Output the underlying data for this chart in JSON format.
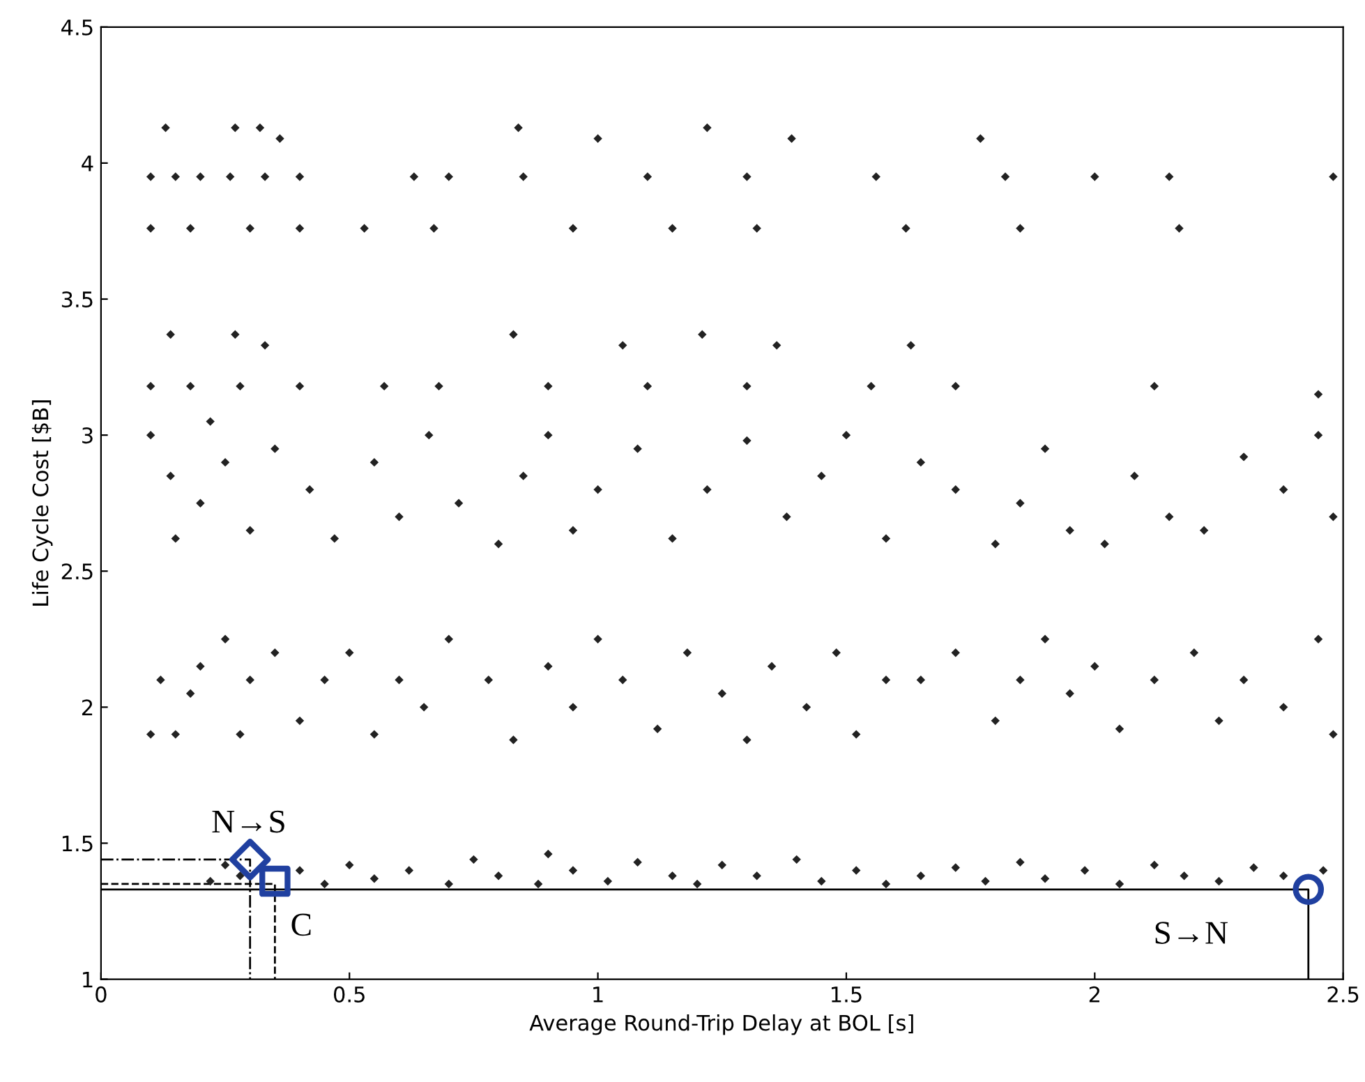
{
  "chart_data": {
    "type": "scatter",
    "xlabel": "Average Round-Trip Delay at BOL [s]",
    "ylabel": "Life Cycle Cost [$B]",
    "xlim": [
      0,
      2.5
    ],
    "ylim": [
      1,
      4.5
    ],
    "xticks": [
      0,
      0.5,
      1,
      1.5,
      2,
      2.5
    ],
    "yticks": [
      1,
      1.5,
      2,
      2.5,
      3,
      3.5,
      4,
      4.5
    ],
    "grid": false,
    "legend": false,
    "series": [
      {
        "marker": "diamond",
        "color": "#222222",
        "x": [
          0.13,
          0.27,
          0.32,
          0.36,
          0.84,
          1.0,
          1.22,
          1.39,
          1.77,
          0.1,
          0.15,
          0.2,
          0.26,
          0.33,
          0.4,
          0.63,
          0.7,
          0.85,
          1.1,
          1.3,
          1.56,
          1.82,
          2.0,
          2.15,
          2.48,
          0.1,
          0.18,
          0.3,
          0.4,
          0.53,
          0.67,
          0.95,
          1.15,
          1.32,
          1.62,
          1.85,
          2.17,
          0.14,
          0.27,
          0.33,
          0.83,
          1.05,
          1.21,
          1.36,
          1.63,
          0.1,
          0.18,
          0.28,
          0.4,
          0.57,
          0.68,
          0.9,
          1.1,
          1.3,
          1.55,
          1.72,
          2.12,
          2.45,
          0.1,
          0.14,
          0.15,
          0.2,
          0.22,
          0.25,
          0.3,
          0.35,
          0.42,
          0.47,
          0.55,
          0.6,
          0.66,
          0.72,
          0.8,
          0.85,
          0.9,
          0.95,
          1.0,
          1.08,
          1.15,
          1.22,
          1.3,
          1.38,
          1.45,
          1.5,
          1.58,
          1.65,
          1.72,
          1.8,
          1.85,
          1.9,
          1.95,
          2.02,
          2.08,
          2.15,
          2.22,
          2.3,
          2.38,
          2.45,
          2.48,
          0.1,
          0.12,
          0.15,
          0.18,
          0.2,
          0.25,
          0.28,
          0.3,
          0.35,
          0.4,
          0.45,
          0.5,
          0.55,
          0.6,
          0.65,
          0.7,
          0.78,
          0.83,
          0.9,
          0.95,
          1.0,
          1.05,
          1.12,
          1.18,
          1.25,
          1.3,
          1.35,
          1.42,
          1.48,
          1.52,
          1.58,
          1.65,
          1.72,
          1.8,
          1.85,
          1.9,
          1.95,
          2.0,
          2.05,
          2.12,
          2.2,
          2.25,
          2.3,
          2.38,
          2.45,
          2.48,
          0.22,
          0.25,
          0.28,
          0.4,
          0.45,
          0.5,
          0.55,
          0.62,
          0.7,
          0.75,
          0.8,
          0.88,
          0.9,
          0.95,
          1.02,
          1.08,
          1.15,
          1.2,
          1.25,
          1.32,
          1.4,
          1.45,
          1.52,
          1.58,
          1.65,
          1.72,
          1.78,
          1.85,
          1.9,
          1.98,
          2.05,
          2.12,
          2.18,
          2.25,
          2.32,
          2.38,
          2.46
        ],
        "values": [
          4.13,
          4.13,
          4.13,
          4.09,
          4.13,
          4.09,
          4.13,
          4.09,
          4.09,
          3.95,
          3.95,
          3.95,
          3.95,
          3.95,
          3.95,
          3.95,
          3.95,
          3.95,
          3.95,
          3.95,
          3.95,
          3.95,
          3.95,
          3.95,
          3.95,
          3.76,
          3.76,
          3.76,
          3.76,
          3.76,
          3.76,
          3.76,
          3.76,
          3.76,
          3.76,
          3.76,
          3.76,
          3.37,
          3.37,
          3.33,
          3.37,
          3.33,
          3.37,
          3.33,
          3.33,
          3.18,
          3.18,
          3.18,
          3.18,
          3.18,
          3.18,
          3.18,
          3.18,
          3.18,
          3.18,
          3.18,
          3.18,
          3.15,
          3.0,
          2.85,
          2.62,
          2.75,
          3.05,
          2.9,
          2.65,
          2.95,
          2.8,
          2.62,
          2.9,
          2.7,
          3.0,
          2.75,
          2.6,
          2.85,
          3.0,
          2.65,
          2.8,
          2.95,
          2.62,
          2.8,
          2.98,
          2.7,
          2.85,
          3.0,
          2.62,
          2.9,
          2.8,
          2.6,
          2.75,
          2.95,
          2.65,
          2.6,
          2.85,
          2.7,
          2.65,
          2.92,
          2.8,
          3.0,
          2.7,
          1.9,
          2.1,
          1.9,
          2.05,
          2.15,
          2.25,
          1.9,
          2.1,
          2.2,
          1.95,
          2.1,
          2.2,
          1.9,
          2.1,
          2.0,
          2.25,
          2.1,
          1.88,
          2.15,
          2.0,
          2.25,
          2.1,
          1.92,
          2.2,
          2.05,
          1.88,
          2.15,
          2.0,
          2.2,
          1.9,
          2.1,
          2.1,
          2.2,
          1.95,
          2.1,
          2.25,
          2.05,
          2.15,
          1.92,
          2.1,
          2.2,
          1.95,
          2.1,
          2.0,
          2.25,
          1.9,
          1.36,
          1.42,
          1.38,
          1.4,
          1.35,
          1.42,
          1.37,
          1.4,
          1.35,
          1.44,
          1.38,
          1.35,
          1.46,
          1.4,
          1.36,
          1.43,
          1.38,
          1.35,
          1.42,
          1.38,
          1.44,
          1.36,
          1.4,
          1.35,
          1.38,
          1.41,
          1.36,
          1.43,
          1.37,
          1.4,
          1.35,
          1.42,
          1.38,
          1.36,
          1.41,
          1.38,
          1.4
        ]
      },
      {
        "type": "line",
        "line_style": "dashdot",
        "color": "#000000",
        "x": [
          0,
          0.3,
          0.3
        ],
        "values": [
          1.44,
          1.44,
          1
        ]
      },
      {
        "type": "line",
        "line_style": "dashed",
        "color": "#000000",
        "x": [
          0,
          0.35,
          0.35
        ],
        "values": [
          1.35,
          1.35,
          1
        ]
      },
      {
        "type": "line",
        "line_style": "solid",
        "color": "#000000",
        "x": [
          0,
          2.43,
          2.43
        ],
        "values": [
          1.33,
          1.33,
          1
        ]
      },
      {
        "type": "scatter",
        "marker": "diamond",
        "color": "#2040a0",
        "x": [
          0.3
        ],
        "values": [
          1.44
        ]
      },
      {
        "type": "scatter",
        "marker": "square",
        "color": "#2040a0",
        "x": [
          0.35
        ],
        "values": [
          1.36
        ]
      },
      {
        "type": "scatter",
        "marker": "circle",
        "color": "#2040a0",
        "x": [
          2.43
        ],
        "values": [
          1.33
        ]
      }
    ],
    "annotations": [
      {
        "text": "N→S",
        "x": 0.3,
        "y": 1.44
      },
      {
        "text": "C",
        "x": 0.35,
        "y": 1.36
      },
      {
        "text": "S→N",
        "x": 2.43,
        "y": 1.33
      }
    ]
  }
}
